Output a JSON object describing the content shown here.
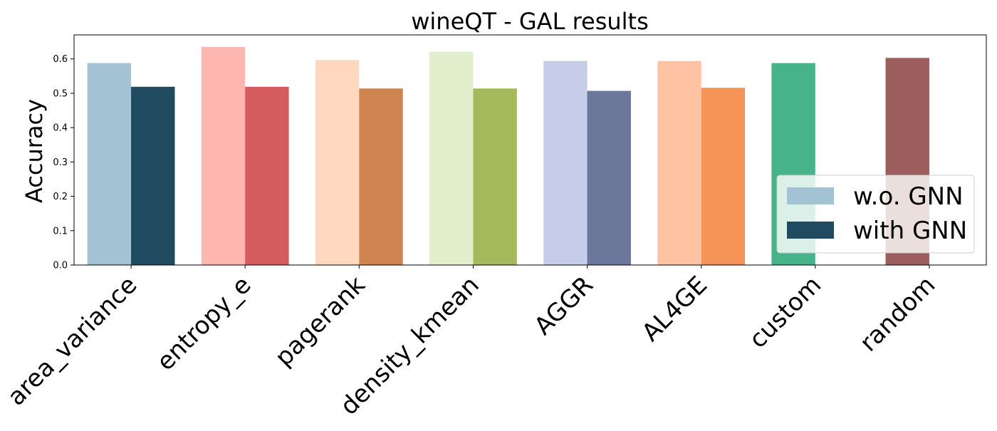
{
  "chart_data": {
    "type": "bar",
    "title": "wineQT - GAL results",
    "xlabel": "",
    "ylabel": "Accuracy",
    "ylim": [
      0,
      0.67
    ],
    "yticks": [
      0.0,
      0.1,
      0.2,
      0.3,
      0.4,
      0.5,
      0.6
    ],
    "ytick_labels": [
      "0.0",
      "0.1",
      "0.2",
      "0.3",
      "0.4",
      "0.5",
      "0.6"
    ],
    "categories": [
      "area_variance",
      "entropy_e",
      "pagerank",
      "density_kmean",
      "AGGR",
      "AL4GE",
      "custom",
      "random"
    ],
    "series": [
      {
        "name": "w.o. GNN",
        "values": [
          0.588,
          0.635,
          0.597,
          0.621,
          0.594,
          0.594,
          0.588,
          0.603
        ],
        "colors": [
          "#a3c3d4",
          "#ffb6b0",
          "#ffd8bf",
          "#e2efcd",
          "#c5cde8",
          "#ffc2a3",
          "#46b38a",
          "#9b5e5c"
        ],
        "legend_color": "#a3c3d4"
      },
      {
        "name": "with GNN",
        "values": [
          0.519,
          0.519,
          0.514,
          0.514,
          0.507,
          0.516,
          null,
          null
        ],
        "colors": [
          "#1f4a5f",
          "#d45c5e",
          "#d0844f",
          "#a3b95c",
          "#6b789b",
          "#f69457",
          null,
          null
        ],
        "legend_color": "#1f4a5f"
      }
    ],
    "grid": false,
    "legend_position": "lower-right"
  }
}
